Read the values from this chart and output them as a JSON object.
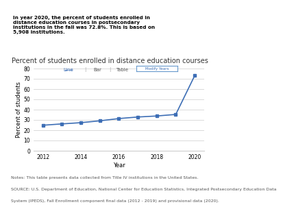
{
  "title": "Percent of students enrolled in distance education courses",
  "xlabel": "Year",
  "ylabel": "Percent of students",
  "years": [
    2012,
    2013,
    2014,
    2015,
    2016,
    2017,
    2018,
    2019,
    2020
  ],
  "values": [
    24.5,
    25.8,
    27.0,
    28.8,
    31.0,
    32.5,
    33.5,
    35.0,
    72.8
  ],
  "ylim": [
    0,
    80
  ],
  "yticks": [
    0,
    10,
    20,
    30,
    40,
    50,
    60,
    70,
    80
  ],
  "xticks": [
    2012,
    2014,
    2016,
    2018,
    2020
  ],
  "line_color": "#3d6eb5",
  "marker": "s",
  "marker_size": 3,
  "line_width": 1.2,
  "header_text": "In year 2020, the percent of students enrolled in\ndistance education courses in postsecondary\ninstitutions in the fall was 72.8%. This is based on\n5,908 institutions.",
  "header_bg": "#e8e8e8",
  "chart_bg": "#ffffff",
  "tab_line": "Line",
  "tab_bar": "Bar",
  "tab_table": "Table",
  "tab_modify": "Modify Years",
  "note_line1": "Notes: This table presents data collected from Title IV institutions in the United States.",
  "note_line2": "SOURCE: U.S. Department of Education, National Center for Education Statistics, Integrated Postsecondary Education Data",
  "note_line3": "System (IPEDS), Fall Enrollment component final data (2012 - 2019) and provisional data (2020).",
  "title_fontsize": 7,
  "axis_fontsize": 6,
  "tick_fontsize": 5.5,
  "note_fontsize": 4.5
}
